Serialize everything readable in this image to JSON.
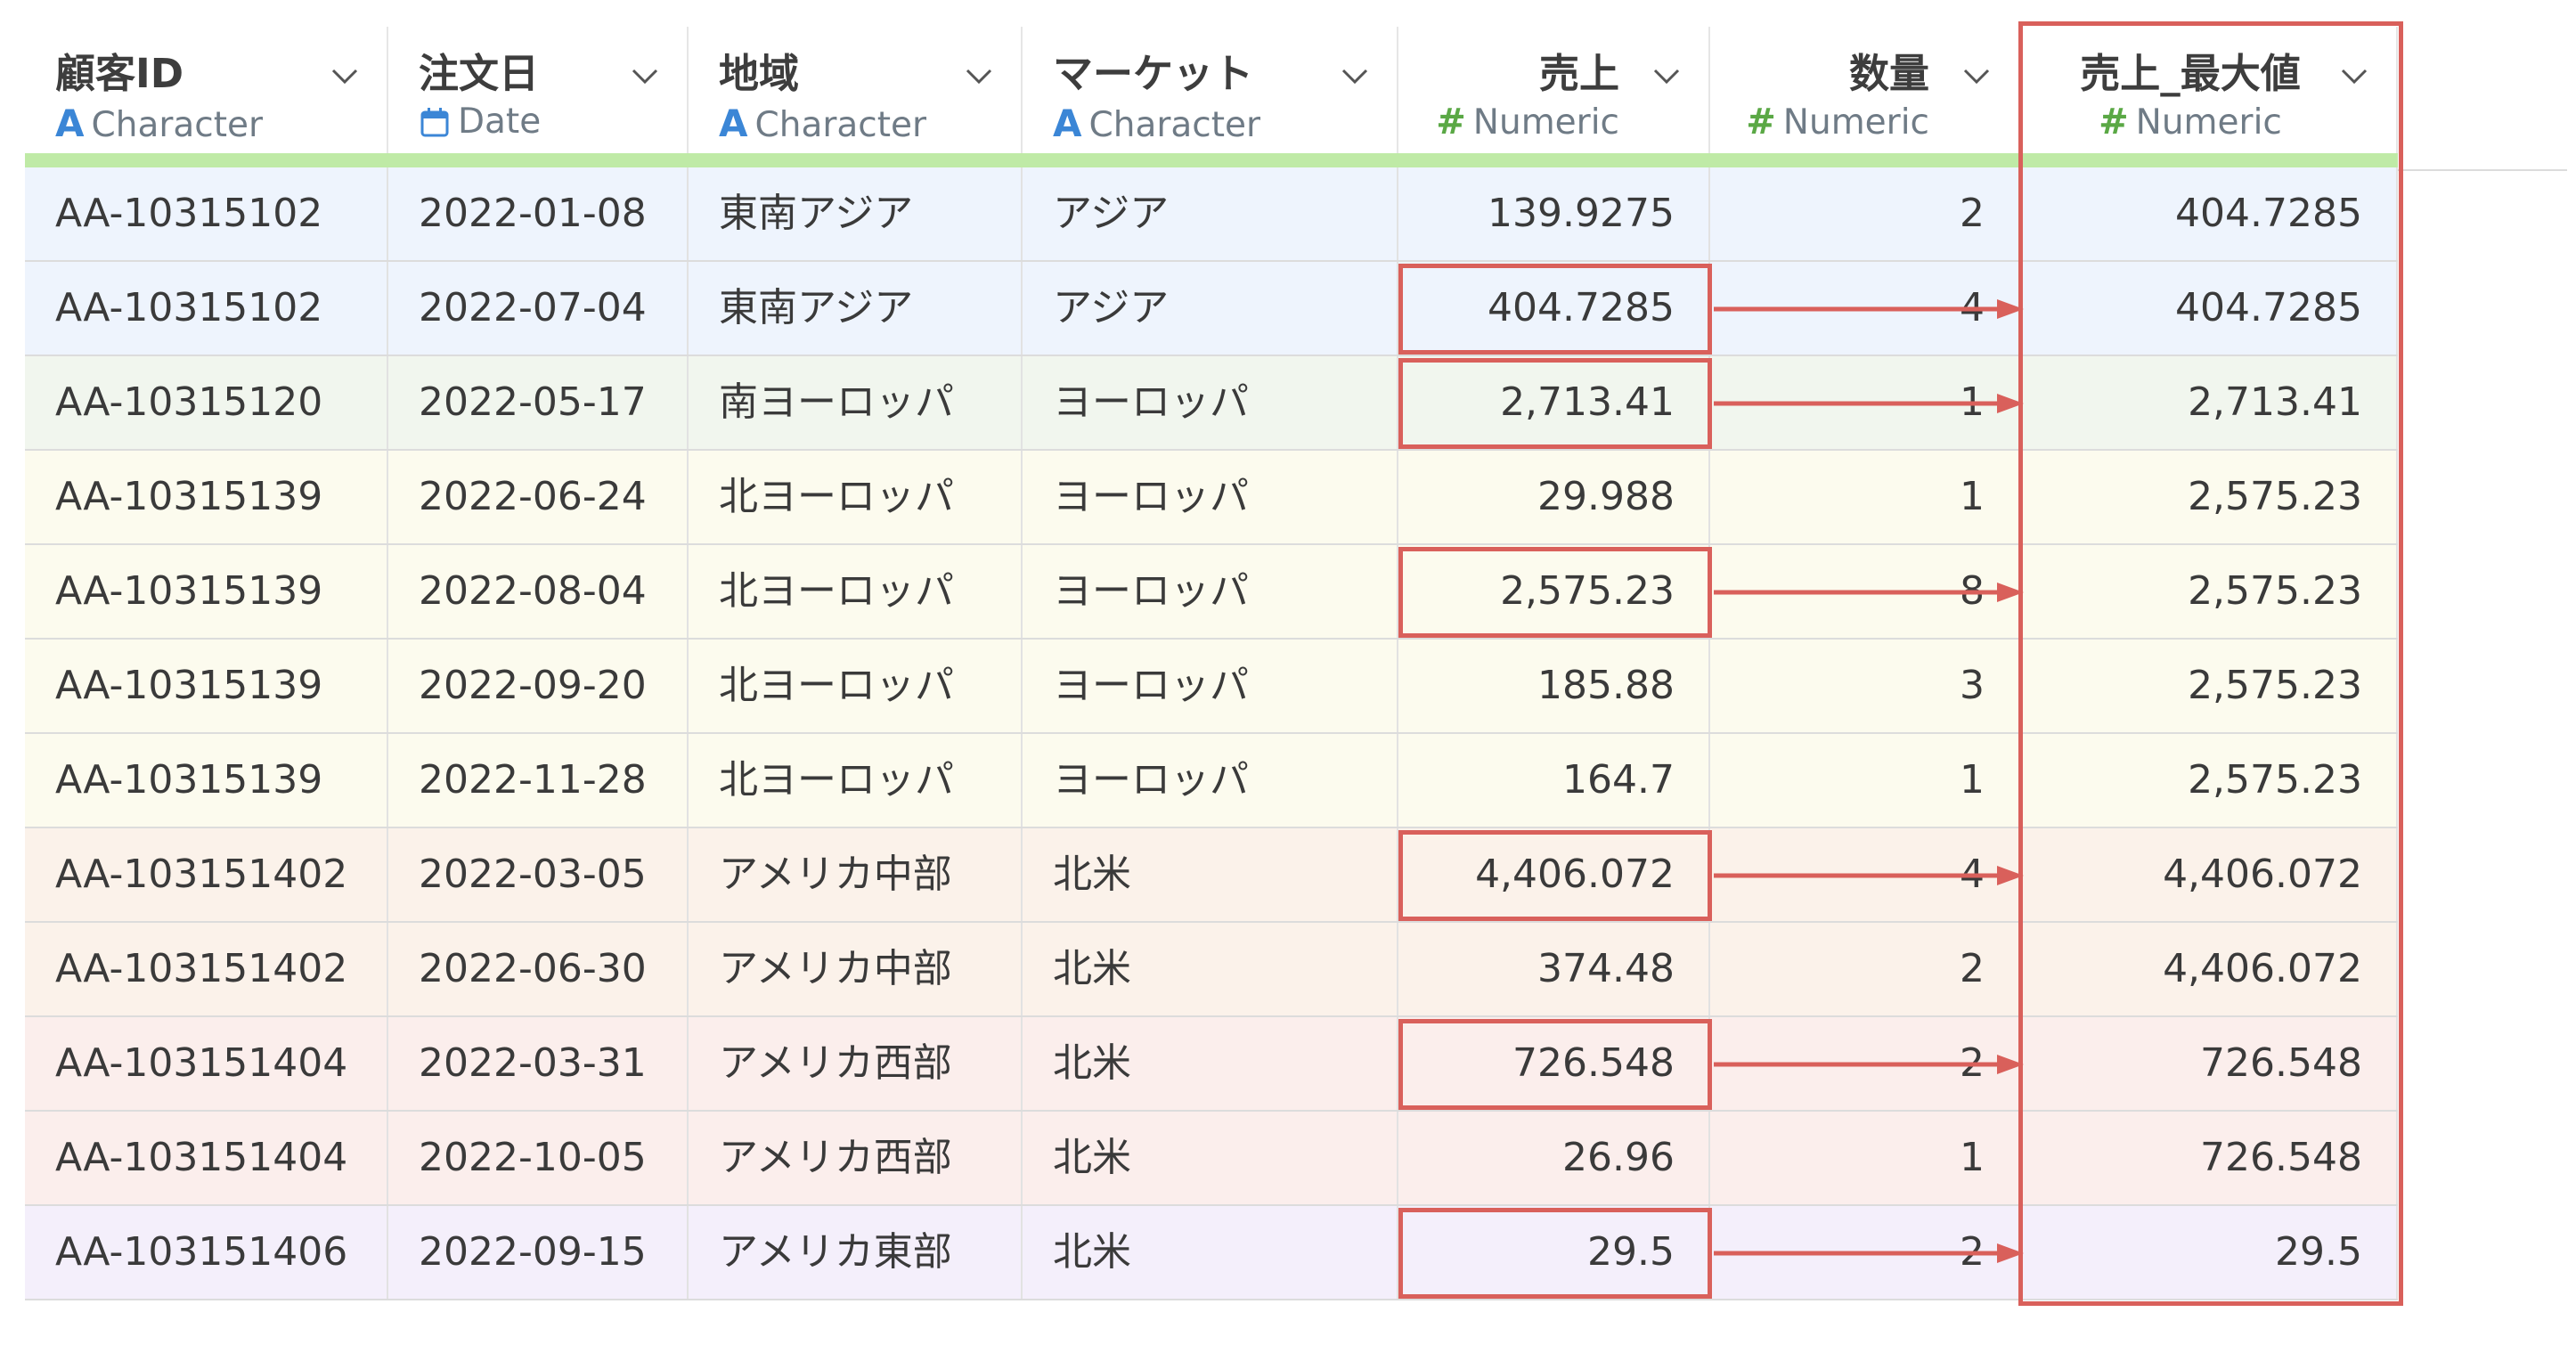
{
  "columns": [
    {
      "name": "顧客ID",
      "type": "Character",
      "icon": "character-type-icon",
      "align": "left"
    },
    {
      "name": "注文日",
      "type": "Date",
      "icon": "calendar-icon",
      "align": "left"
    },
    {
      "name": "地域",
      "type": "Character",
      "icon": "character-type-icon",
      "align": "left"
    },
    {
      "name": "マーケット",
      "type": "Character",
      "icon": "character-type-icon",
      "align": "left"
    },
    {
      "name": "売上",
      "type": "Numeric",
      "icon": "numeric-type-icon",
      "align": "right"
    },
    {
      "name": "数量",
      "type": "Numeric",
      "icon": "numeric-type-icon",
      "align": "right"
    },
    {
      "name": "売上_最大値",
      "type": "Numeric",
      "icon": "numeric-type-icon",
      "align": "center"
    }
  ],
  "type_glyphs": {
    "Character": "A",
    "Numeric": "#"
  },
  "group_colors": {
    "AA-10315102": "#eef4fd",
    "AA-10315120": "#f1f6ee",
    "AA-10315139": "#fcfbee",
    "AA-103151402": "#fbf2ea",
    "AA-103151404": "#fbeeec",
    "AA-103151406": "#f4effb"
  },
  "highlight_color": "#d9605b",
  "rows": [
    {
      "id": "AA-10315102",
      "date": "2022-01-08",
      "region": "東南アジア",
      "market": "アジア",
      "sales": "139.9275",
      "qty": "2",
      "max": "404.7285",
      "highlight": false
    },
    {
      "id": "AA-10315102",
      "date": "2022-07-04",
      "region": "東南アジア",
      "market": "アジア",
      "sales": "404.7285",
      "qty": "4",
      "max": "404.7285",
      "highlight": true
    },
    {
      "id": "AA-10315120",
      "date": "2022-05-17",
      "region": "南ヨーロッパ",
      "market": "ヨーロッパ",
      "sales": "2,713.41",
      "qty": "1",
      "max": "2,713.41",
      "highlight": true
    },
    {
      "id": "AA-10315139",
      "date": "2022-06-24",
      "region": "北ヨーロッパ",
      "market": "ヨーロッパ",
      "sales": "29.988",
      "qty": "1",
      "max": "2,575.23",
      "highlight": false
    },
    {
      "id": "AA-10315139",
      "date": "2022-08-04",
      "region": "北ヨーロッパ",
      "market": "ヨーロッパ",
      "sales": "2,575.23",
      "qty": "8",
      "max": "2,575.23",
      "highlight": true
    },
    {
      "id": "AA-10315139",
      "date": "2022-09-20",
      "region": "北ヨーロッパ",
      "market": "ヨーロッパ",
      "sales": "185.88",
      "qty": "3",
      "max": "2,575.23",
      "highlight": false
    },
    {
      "id": "AA-10315139",
      "date": "2022-11-28",
      "region": "北ヨーロッパ",
      "market": "ヨーロッパ",
      "sales": "164.7",
      "qty": "1",
      "max": "2,575.23",
      "highlight": false
    },
    {
      "id": "AA-103151402",
      "date": "2022-03-05",
      "region": "アメリカ中部",
      "market": "北米",
      "sales": "4,406.072",
      "qty": "4",
      "max": "4,406.072",
      "highlight": true
    },
    {
      "id": "AA-103151402",
      "date": "2022-06-30",
      "region": "アメリカ中部",
      "market": "北米",
      "sales": "374.48",
      "qty": "2",
      "max": "4,406.072",
      "highlight": false
    },
    {
      "id": "AA-103151404",
      "date": "2022-03-31",
      "region": "アメリカ西部",
      "market": "北米",
      "sales": "726.548",
      "qty": "2",
      "max": "726.548",
      "highlight": true
    },
    {
      "id": "AA-103151404",
      "date": "2022-10-05",
      "region": "アメリカ西部",
      "market": "北米",
      "sales": "26.96",
      "qty": "1",
      "max": "726.548",
      "highlight": false
    },
    {
      "id": "AA-103151406",
      "date": "2022-09-15",
      "region": "アメリカ東部",
      "market": "北米",
      "sales": "29.5",
      "qty": "2",
      "max": "29.5",
      "highlight": true
    }
  ]
}
